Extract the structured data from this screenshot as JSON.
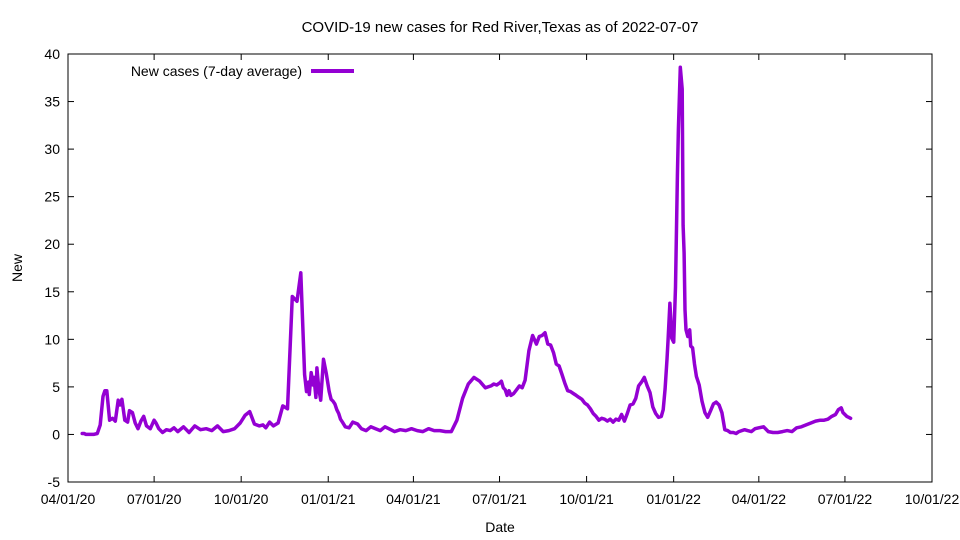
{
  "chart_data": {
    "type": "line",
    "title": "COVID-19 new cases for Red River,Texas as of 2022-07-07",
    "xlabel": "Date",
    "ylabel": "New",
    "xlim": [
      "2020-04-01",
      "2022-10-01"
    ],
    "ylim": [
      -5,
      40
    ],
    "x_ticks": [
      "04/01/20",
      "07/01/20",
      "10/01/20",
      "01/01/21",
      "04/01/21",
      "07/01/21",
      "10/01/21",
      "01/01/22",
      "04/01/22",
      "07/01/22",
      "10/01/22"
    ],
    "y_ticks": [
      "-5",
      "0",
      "5",
      "10",
      "15",
      "20",
      "25",
      "30",
      "35",
      "40"
    ],
    "grid": false,
    "legend_position": "top-left",
    "series": [
      {
        "name": "New cases (7-day average)",
        "color": "#9400d3",
        "x": [
          "2020-04-16",
          "2020-04-18",
          "2020-04-20",
          "2020-04-24",
          "2020-04-28",
          "2020-05-02",
          "2020-05-05",
          "2020-05-08",
          "2020-05-10",
          "2020-05-12",
          "2020-05-15",
          "2020-05-18",
          "2020-05-21",
          "2020-05-24",
          "2020-05-26",
          "2020-05-28",
          "2020-05-31",
          "2020-06-03",
          "2020-06-05",
          "2020-06-08",
          "2020-06-11",
          "2020-06-14",
          "2020-06-17",
          "2020-06-20",
          "2020-06-23",
          "2020-06-27",
          "2020-07-01",
          "2020-07-03",
          "2020-07-06",
          "2020-07-10",
          "2020-07-14",
          "2020-07-18",
          "2020-07-22",
          "2020-07-26",
          "2020-08-01",
          "2020-08-07",
          "2020-08-13",
          "2020-08-19",
          "2020-08-25",
          "2020-08-31",
          "2020-09-06",
          "2020-09-12",
          "2020-09-18",
          "2020-09-24",
          "2020-09-30",
          "2020-10-05",
          "2020-10-10",
          "2020-10-15",
          "2020-10-20",
          "2020-10-24",
          "2020-10-27",
          "2020-10-31",
          "2020-11-04",
          "2020-11-09",
          "2020-11-14",
          "2020-11-19",
          "2020-11-24",
          "2020-11-29",
          "2020-12-03",
          "2020-12-07",
          "2020-12-09",
          "2020-12-11",
          "2020-12-12",
          "2020-12-14",
          "2020-12-16",
          "2020-12-17",
          "2020-12-19",
          "2020-12-20",
          "2020-12-22",
          "2020-12-24",
          "2020-12-27",
          "2020-12-30",
          "2021-01-02",
          "2021-01-04",
          "2021-01-06",
          "2021-01-08",
          "2021-01-10",
          "2021-01-12",
          "2021-01-14",
          "2021-01-16",
          "2021-01-19",
          "2021-01-23",
          "2021-01-27",
          "2021-02-01",
          "2021-02-05",
          "2021-02-10",
          "2021-02-15",
          "2021-02-20",
          "2021-02-25",
          "2021-03-02",
          "2021-03-06",
          "2021-03-12",
          "2021-03-18",
          "2021-03-24",
          "2021-03-30",
          "2021-04-05",
          "2021-04-11",
          "2021-04-17",
          "2021-04-23",
          "2021-04-29",
          "2021-05-05",
          "2021-05-11",
          "2021-05-17",
          "2021-05-23",
          "2021-05-29",
          "2021-06-04",
          "2021-06-10",
          "2021-06-16",
          "2021-06-22",
          "2021-06-25",
          "2021-06-28",
          "2021-07-01",
          "2021-07-03",
          "2021-07-05",
          "2021-07-07",
          "2021-07-09",
          "2021-07-11",
          "2021-07-13",
          "2021-07-16",
          "2021-07-19",
          "2021-07-22",
          "2021-07-25",
          "2021-07-28",
          "2021-08-01",
          "2021-08-05",
          "2021-08-09",
          "2021-08-12",
          "2021-08-15",
          "2021-08-18",
          "2021-08-21",
          "2021-08-24",
          "2021-08-27",
          "2021-08-30",
          "2021-09-02",
          "2021-09-05",
          "2021-09-08",
          "2021-09-11",
          "2021-09-14",
          "2021-09-17",
          "2021-09-20",
          "2021-09-23",
          "2021-09-26",
          "2021-09-29",
          "2021-10-02",
          "2021-10-05",
          "2021-10-08",
          "2021-10-11",
          "2021-10-14",
          "2021-10-17",
          "2021-10-20",
          "2021-10-23",
          "2021-10-26",
          "2021-10-29",
          "2021-11-01",
          "2021-11-04",
          "2021-11-07",
          "2021-11-10",
          "2021-11-13",
          "2021-11-16",
          "2021-11-19",
          "2021-11-22",
          "2021-11-25",
          "2021-11-28",
          "2021-12-01",
          "2021-12-04",
          "2021-12-07",
          "2021-12-10",
          "2021-12-13",
          "2021-12-16",
          "2021-12-19",
          "2021-12-21",
          "2021-12-23",
          "2021-12-25",
          "2021-12-26",
          "2021-12-28",
          "2021-12-30",
          "2022-01-01",
          "2022-01-03",
          "2022-01-05",
          "2022-01-06",
          "2022-01-08",
          "2022-01-10",
          "2022-01-11",
          "2022-01-12",
          "2022-01-13",
          "2022-01-14",
          "2022-01-16",
          "2022-01-18",
          "2022-01-19",
          "2022-01-21",
          "2022-01-23",
          "2022-01-25",
          "2022-01-28",
          "2022-01-31",
          "2022-02-03",
          "2022-02-06",
          "2022-02-09",
          "2022-02-12",
          "2022-02-15",
          "2022-02-18",
          "2022-02-21",
          "2022-02-24",
          "2022-02-27",
          "2022-03-02",
          "2022-03-05",
          "2022-03-08",
          "2022-03-11",
          "2022-03-14",
          "2022-03-17",
          "2022-03-20",
          "2022-03-24",
          "2022-03-28",
          "2022-04-01",
          "2022-04-06",
          "2022-04-11",
          "2022-04-16",
          "2022-04-21",
          "2022-04-26",
          "2022-05-01",
          "2022-05-06",
          "2022-05-11",
          "2022-05-16",
          "2022-05-21",
          "2022-05-26",
          "2022-05-31",
          "2022-06-05",
          "2022-06-09",
          "2022-06-13",
          "2022-06-17",
          "2022-06-21",
          "2022-06-24",
          "2022-06-27",
          "2022-06-29",
          "2022-07-01",
          "2022-07-03",
          "2022-07-05",
          "2022-07-07"
        ],
        "values": [
          0.1,
          0.1,
          0,
          0,
          0,
          0.1,
          1,
          4,
          4.6,
          4.6,
          1.5,
          1.7,
          1.4,
          3.6,
          3.1,
          3.7,
          1.5,
          1.3,
          2.5,
          2.3,
          1.2,
          0.6,
          1.4,
          1.9,
          0.9,
          0.6,
          1.5,
          1.2,
          0.6,
          0.2,
          0.5,
          0.4,
          0.7,
          0.3,
          0.8,
          0.2,
          0.9,
          0.5,
          0.6,
          0.4,
          0.9,
          0.3,
          0.4,
          0.6,
          1.2,
          2,
          2.4,
          1.1,
          0.9,
          1,
          0.7,
          1.3,
          0.9,
          1.2,
          3,
          2.7,
          14.5,
          14,
          17,
          6.3,
          4.5,
          5.5,
          4.2,
          6.5,
          5.2,
          6,
          3.9,
          7,
          4.8,
          3.6,
          7.9,
          6.4,
          4.5,
          3.7,
          3.5,
          3.2,
          2.6,
          2.2,
          1.6,
          1.3,
          0.8,
          0.7,
          1.3,
          1.1,
          0.6,
          0.4,
          0.8,
          0.6,
          0.4,
          0.8,
          0.6,
          0.3,
          0.5,
          0.4,
          0.6,
          0.4,
          0.3,
          0.6,
          0.4,
          0.4,
          0.3,
          0.3,
          1.5,
          3.8,
          5.3,
          6,
          5.6,
          4.9,
          5.1,
          5.3,
          5.2,
          5.4,
          5.6,
          4.9,
          4.7,
          4.1,
          4.6,
          4.1,
          4.3,
          4.7,
          5.1,
          4.9,
          5.7,
          8.8,
          10.4,
          9.5,
          10.3,
          10.4,
          10.7,
          9.5,
          9.4,
          8.6,
          7.4,
          7.2,
          6.3,
          5.4,
          4.6,
          4.5,
          4.3,
          4.1,
          3.9,
          3.7,
          3.3,
          3.1,
          2.7,
          2.2,
          1.9,
          1.5,
          1.7,
          1.6,
          1.4,
          1.6,
          1.3,
          1.6,
          1.5,
          2.1,
          1.4,
          2.2,
          3.1,
          3.2,
          3.8,
          5.1,
          5.5,
          6,
          5.1,
          4.4,
          2.9,
          2.2,
          1.8,
          1.9,
          2.6,
          4.8,
          7.9,
          9.8,
          13.8,
          10.1,
          9.7,
          15.5,
          27.2,
          32.1,
          38.6,
          36.3,
          22,
          19.1,
          13.1,
          11,
          10.3,
          11,
          9.3,
          9.1,
          7.4,
          6.1,
          5.2,
          3.5,
          2.3,
          1.8,
          2.5,
          3.2,
          3.4,
          3.1,
          2.3,
          0.5,
          0.4,
          0.2,
          0.2,
          0.1,
          0.3,
          0.4,
          0.5,
          0.4,
          0.3,
          0.6,
          0.7,
          0.8,
          0.3,
          0.2,
          0.2,
          0.3,
          0.4,
          0.3,
          0.7,
          0.8,
          1,
          1.2,
          1.4,
          1.5,
          1.5,
          1.6,
          1.9,
          2.1,
          2.6,
          2.8,
          2.3,
          2.1,
          1.9,
          1.8,
          1.7
        ]
      }
    ]
  }
}
